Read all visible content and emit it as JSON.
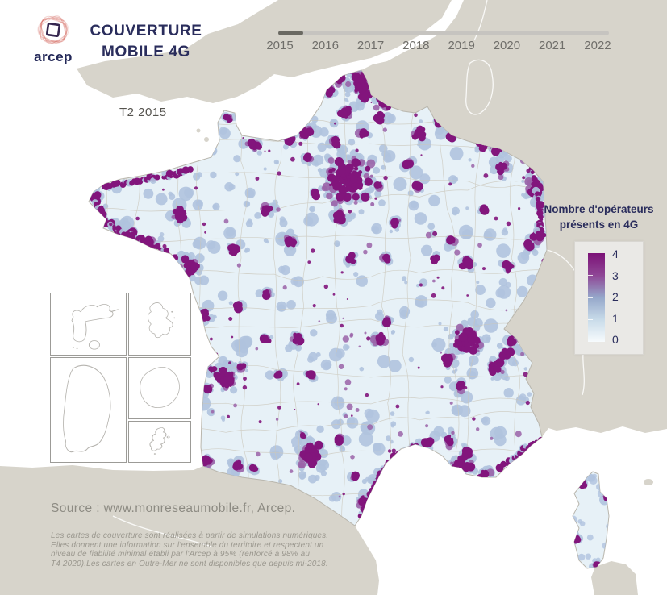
{
  "header": {
    "logo_text": "arcep",
    "title_line1": "COUVERTURE",
    "title_line2": "MOBILE 4G",
    "period_label": "T2 2015"
  },
  "timeline": {
    "years": [
      "2015",
      "2016",
      "2017",
      "2018",
      "2019",
      "2020",
      "2021",
      "2022"
    ],
    "selected_year": "2015"
  },
  "legend": {
    "title_line1": "Nombre d'opérateurs",
    "title_line2": "présents en 4G",
    "scale_labels": [
      "4",
      "3",
      "2",
      "1",
      "0"
    ],
    "scale_min": 0,
    "scale_max": 4,
    "gradient_top_to_bottom": [
      "#7c1277",
      "#8f4796",
      "#95a7ca",
      "#c8dbe9",
      "#f7fbfd"
    ]
  },
  "footer": {
    "source": "Source : www.monreseaumobile.fr, Arcep.",
    "disclaimer_lines": [
      "Les cartes de couverture sont réalisées à partir de simulations numériques.",
      "Elles donnent une information sur l'ensemble du territoire et respectent un",
      "niveau de fiabilité minimal établi par l'Arcep à 95% (renforcé à 98% au",
      "T4 2020).Les cartes en Outre-Mer ne sont disponibles que depuis mi-2018."
    ]
  },
  "colors": {
    "title_navy": "#2a2d5c",
    "logo_red": "#cd5145",
    "sea": "#ffffff",
    "land_gray": "#d7d4cb",
    "france_base": "#e7f1f7",
    "coverage_1_2": "#b0c3de",
    "coverage_3": "#9a63a8",
    "coverage_4": "#82157c",
    "dept_line": "#cbc7bb",
    "coast_line": "#b9b6ad",
    "slider_track": "#c6c4c0",
    "slider_fill": "#6a6962",
    "year_text": "#6f6e6a",
    "source_text": "#8d8b83",
    "disclaimer_text": "#9b988f"
  }
}
